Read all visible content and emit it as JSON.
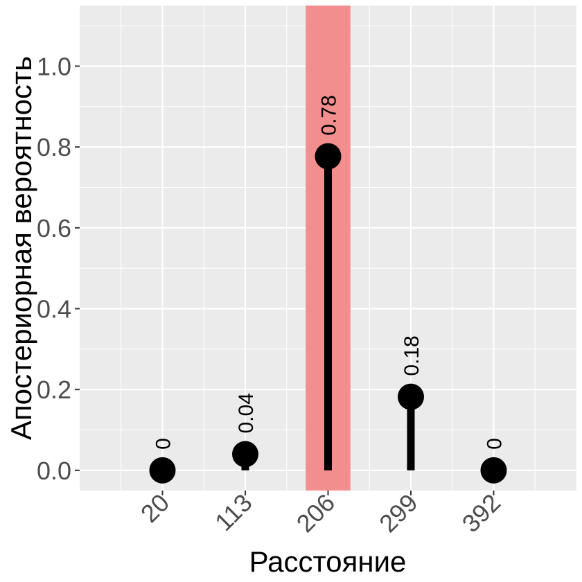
{
  "chart_data": {
    "type": "lollipop",
    "xlabel": "Расстояние",
    "ylabel": "Апостериорная вероятность",
    "x": [
      "20",
      "113",
      "206",
      "299",
      "392"
    ],
    "values": [
      0.0,
      0.04,
      0.777,
      0.182,
      0.0
    ],
    "labels": [
      "0",
      "0.04",
      "0.78",
      "0.18",
      "0"
    ],
    "ylim": [
      -0.05,
      1.15
    ],
    "yticks": [
      "0.0",
      "0.2",
      "0.4",
      "0.6",
      "0.8",
      "1.0"
    ],
    "highlight_index": 2,
    "highlight_color": "#f28e8e",
    "panel_bg": "#ebebeb",
    "grid_color": "#ffffff",
    "mark_color": "#000000",
    "grid": true
  }
}
